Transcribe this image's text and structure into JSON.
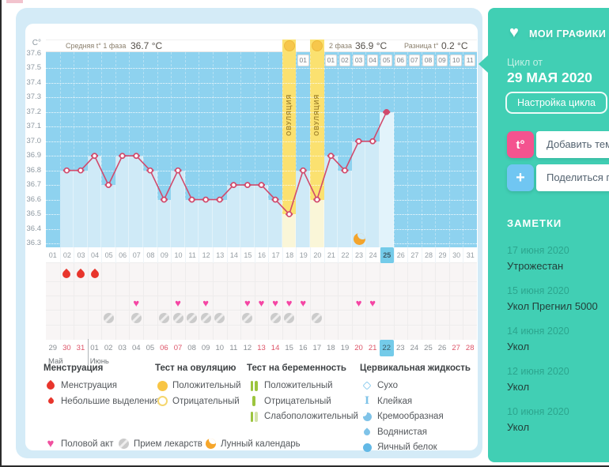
{
  "colors": {
    "sidebar_teal": "#41cfb4",
    "accent_pink": "#f4538f",
    "accent_blue": "#70c6f2",
    "line": "#d14a6c",
    "ovulation_yellow": "#fbe170",
    "highlight_day": "#74cbe9",
    "menstruation_red": "#e8352c",
    "heart_pink": "#f545a4",
    "moon_orange": "#f3a42c",
    "pregnancy_green": "#9cc43e",
    "cervical_blue": "#7fc3e8"
  },
  "chart_data": {
    "type": "line",
    "unit_label": "C°",
    "stats": {
      "phase1_label": "Средняя t° 1 фаза",
      "phase1_value": "36.7 °C",
      "phase2_label": "2 фаза",
      "phase2_value": "36.9 °C",
      "diff_label": "Разница t°",
      "diff_value": "0.2 °C"
    },
    "ylim": [
      36.3,
      37.6
    ],
    "yticks": [
      "37.6",
      "37.5",
      "37.4",
      "37.3",
      "37.2",
      "37.1",
      "37.0",
      "36.9",
      "36.8",
      "36.7",
      "36.6",
      "36.5",
      "36.4",
      "36.3"
    ],
    "day_labels": [
      "01",
      "02",
      "03",
      "04",
      "05",
      "06",
      "07",
      "08",
      "09",
      "10",
      "11",
      "12",
      "13",
      "14",
      "15",
      "16",
      "17",
      "18",
      "19",
      "20",
      "21",
      "22",
      "23",
      "24",
      "25",
      "26",
      "27",
      "28",
      "29",
      "30",
      "31"
    ],
    "temps": [
      null,
      36.8,
      36.8,
      36.9,
      36.7,
      36.9,
      36.9,
      36.8,
      36.6,
      36.8,
      36.6,
      36.6,
      36.6,
      36.7,
      36.7,
      36.7,
      36.6,
      36.5,
      36.8,
      36.6,
      36.9,
      36.8,
      37.0,
      37.0,
      37.2,
      null,
      null,
      null,
      null,
      null,
      null
    ],
    "current_day": 25,
    "ovulation_days": [
      18,
      20
    ],
    "ovulation_column_label": "ОВУЛЯЦИЯ",
    "phase2_numbers": [
      {
        "day": 19,
        "label": "01"
      },
      {
        "day": 21,
        "label": "01"
      },
      {
        "day": 22,
        "label": "02"
      },
      {
        "day": 23,
        "label": "03"
      },
      {
        "day": 24,
        "label": "04"
      },
      {
        "day": 25,
        "label": "05"
      },
      {
        "day": 26,
        "label": "06"
      },
      {
        "day": 27,
        "label": "07"
      },
      {
        "day": 28,
        "label": "08"
      },
      {
        "day": 29,
        "label": "09"
      },
      {
        "day": 30,
        "label": "10"
      },
      {
        "day": 31,
        "label": "11"
      }
    ],
    "moon_day": 23,
    "menstruation_days": [
      2,
      3,
      4
    ],
    "intercourse_days": [
      7,
      10,
      12,
      15,
      16,
      17,
      18,
      19,
      23,
      24
    ],
    "medication_days": [
      5,
      7,
      9,
      10,
      11,
      12,
      13,
      15,
      17,
      18,
      20
    ],
    "calendar": {
      "dates": [
        "29",
        "30",
        "31",
        "01",
        "02",
        "03",
        "04",
        "05",
        "06",
        "07",
        "08",
        "09",
        "10",
        "11",
        "12",
        "13",
        "14",
        "15",
        "16",
        "17",
        "18",
        "19",
        "20",
        "21",
        "22",
        "23",
        "24",
        "25",
        "26",
        "27",
        "28"
      ],
      "red_cols": [
        1,
        2,
        8,
        9,
        15,
        16,
        22,
        23,
        29,
        30
      ],
      "today_col": 24,
      "months": [
        {
          "label": "Май",
          "start_col": 0
        },
        {
          "label": "Июнь",
          "start_col": 3
        }
      ]
    }
  },
  "legend": {
    "groups": [
      {
        "title": "Менструация",
        "items": [
          {
            "icon": "drop-large",
            "label": "Менструация"
          },
          {
            "icon": "drop-small",
            "label": "Небольшие выделения"
          }
        ]
      },
      {
        "title": "Тест на овуляцию",
        "items": [
          {
            "icon": "circle-filled-yellow",
            "label": "Положительный"
          },
          {
            "icon": "circle-outline-yellow",
            "label": "Отрицательный"
          }
        ]
      },
      {
        "title": "Тест на беременность",
        "items": [
          {
            "icon": "bars-two-green",
            "label": "Положительный"
          },
          {
            "icon": "bar-one-green",
            "label": "Отрицательный"
          },
          {
            "icon": "bars-weak-green",
            "label": "Слабоположительный"
          }
        ]
      },
      {
        "title": "Цервикальная жидкость",
        "items": [
          {
            "icon": "diamond-outline",
            "label": "Сухо"
          },
          {
            "icon": "ibeam",
            "label": "Клейкая"
          },
          {
            "icon": "crescent-blob",
            "label": "Кремообразная"
          },
          {
            "icon": "drop-blue",
            "label": "Водянистая"
          },
          {
            "icon": "circle-blue",
            "label": "Яичный белок"
          }
        ]
      }
    ],
    "footer_items": [
      {
        "icon": "heart",
        "label": "Половой акт"
      },
      {
        "icon": "pill",
        "label": "Прием лекарств"
      },
      {
        "icon": "moon",
        "label": "Лунный календарь"
      }
    ]
  },
  "sidebar": {
    "title": "МОИ ГРАФИКИ",
    "cycle_label": "Цикл от",
    "cycle_date": "29 МАЯ 2020",
    "settings_button": "Настройка цикла",
    "add_temp_button": {
      "icon_label": "t°",
      "label": "Добавить темпер"
    },
    "share_button": {
      "icon_label": "+",
      "label": "Поделиться граф"
    },
    "notes_title": "ЗАМЕТКИ",
    "notes": [
      {
        "date": "17 июня 2020",
        "text": "Утрожестан"
      },
      {
        "date": "15 июня 2020",
        "text": "Укол Прегнил 5000"
      },
      {
        "date": "14 июня 2020",
        "text": "Укол"
      },
      {
        "date": "12 июня 2020",
        "text": "Укол"
      },
      {
        "date": "10 июня 2020",
        "text": "Укол"
      }
    ]
  }
}
